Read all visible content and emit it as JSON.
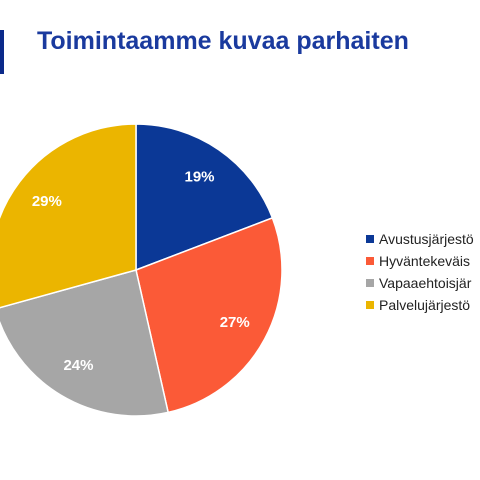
{
  "title": "Toimintaamme kuvaa parhaiten",
  "chart_data": {
    "type": "pie",
    "title": "Toimintaamme kuvaa parhaiten",
    "categories": [
      "Avustusjärjestö",
      "Hyväntekeväis",
      "Vapaaehtoisjär",
      "Palvelujärjestö"
    ],
    "values": [
      19,
      27,
      24,
      29
    ],
    "value_labels": [
      "19%",
      "27%",
      "24%",
      "29%"
    ],
    "colors": [
      "#0b3896",
      "#fb5a37",
      "#a6a6a6",
      "#ebb500"
    ],
    "start": "12 o'clock",
    "direction": "clockwise",
    "legend_position": "right"
  }
}
